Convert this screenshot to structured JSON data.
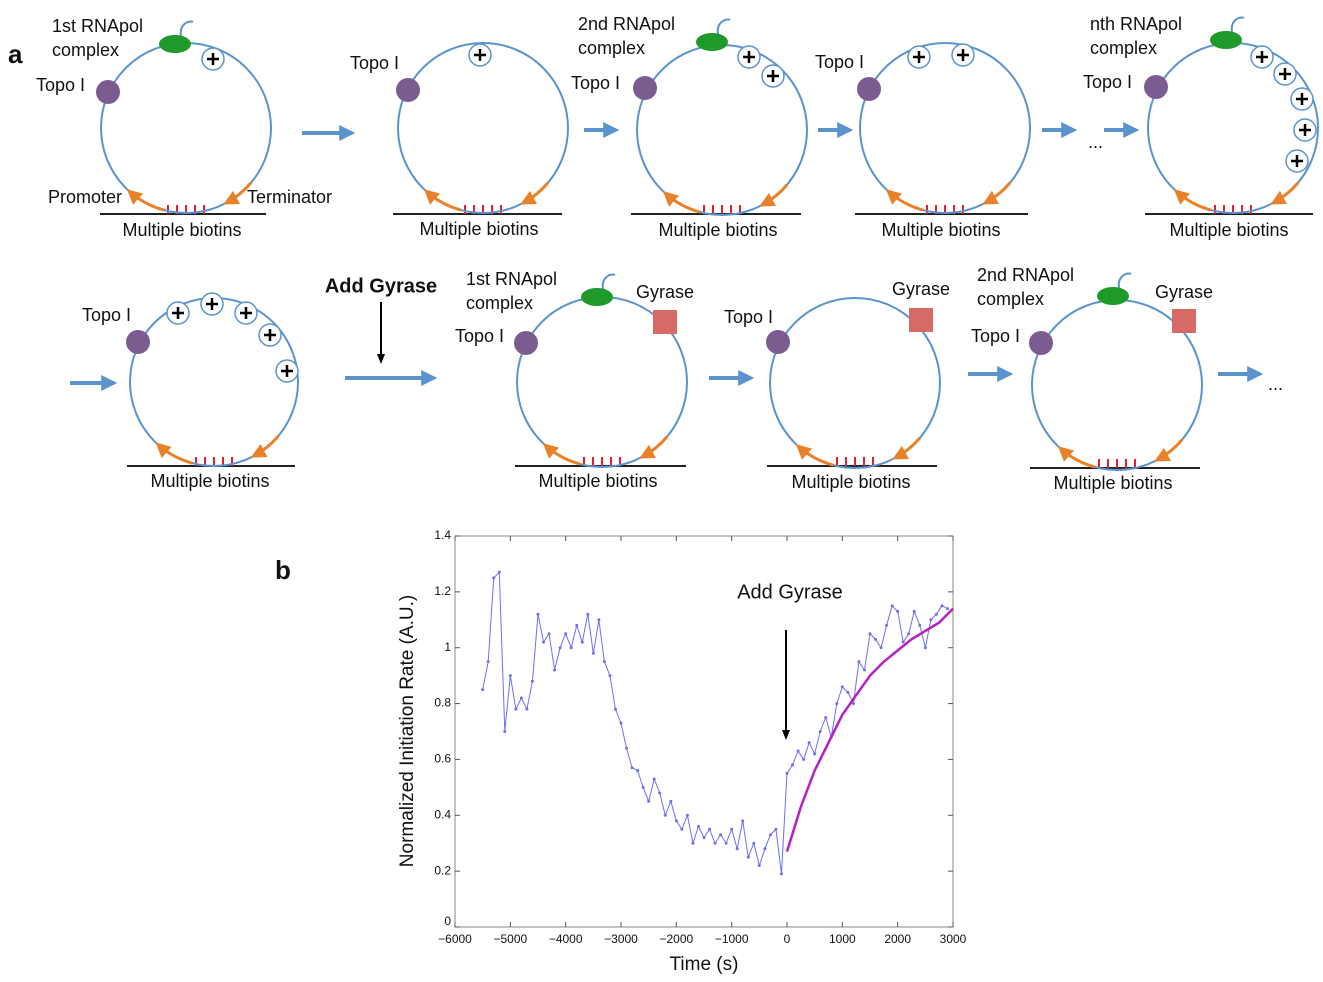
{
  "panel_a": {
    "label": "a",
    "add_gyrase": "Add Gyrase",
    "ellipses": [
      "...",
      "..."
    ],
    "diagrams": [
      {
        "rnapol": [
          "1st RNApol",
          "complex"
        ],
        "topo": "Topo I",
        "promoter": "Promoter",
        "terminator": "Terminator",
        "biotins": "Multiple biotins"
      },
      {
        "topo": "Topo I",
        "biotins": "Multiple biotins"
      },
      {
        "rnapol": [
          "2nd RNApol",
          "complex"
        ],
        "topo": "Topo I",
        "biotins": "Multiple biotins"
      },
      {
        "topo": "Topo I",
        "biotins": "Multiple biotins"
      },
      {
        "rnapol": [
          "nth RNApol",
          "complex"
        ],
        "topo": "Topo I",
        "biotins": "Multiple biotins"
      },
      {
        "topo": "Topo I",
        "biotins": "Multiple biotins"
      },
      {
        "rnapol": [
          "1st RNApol",
          "complex"
        ],
        "topo": "Topo I",
        "gyrase": "Gyrase",
        "biotins": "Multiple biotins"
      },
      {
        "topo": "Topo I",
        "gyrase": "Gyrase",
        "biotins": "Multiple biotins"
      },
      {
        "rnapol": [
          "2nd RNApol",
          "complex"
        ],
        "topo": "Topo I",
        "gyrase": "Gyrase",
        "biotins": "Multiple biotins"
      }
    ]
  },
  "chart_data": {
    "type": "line",
    "label": "b",
    "annotation": "Add Gyrase",
    "xlabel": "Time (s)",
    "ylabel": "Normalized Initiation Rate (A.U.)",
    "xlim": [
      -6000,
      3000
    ],
    "ylim": [
      0,
      1.4
    ],
    "xticks": [
      {
        "value": -6000,
        "label": "−6000"
      },
      {
        "value": -5000,
        "label": "−5000"
      },
      {
        "value": -4000,
        "label": "−4000"
      },
      {
        "value": -3000,
        "label": "−3000"
      },
      {
        "value": -2000,
        "label": "−2000"
      },
      {
        "value": -1000,
        "label": "−1000"
      },
      0,
      1000,
      2000,
      3000
    ],
    "yticks": [
      0,
      0.2,
      0.4,
      0.6,
      0.8,
      1,
      1.2,
      1.4
    ],
    "series": [
      {
        "color": "#6f6ff2",
        "markers": true,
        "x": [
          -5500,
          -5400,
          -5300,
          -5200,
          -5100,
          -5000,
          -4900,
          -4800,
          -4700,
          -4600,
          -4500,
          -4400,
          -4300,
          -4200,
          -4100,
          -4000,
          -3900,
          -3800,
          -3700,
          -3600,
          -3500,
          -3400,
          -3300,
          -3200,
          -3100,
          -3000,
          -2900,
          -2800,
          -2700,
          -2600,
          -2500,
          -2400,
          -2300,
          -2200,
          -2100,
          -2000,
          -1900,
          -1800,
          -1700,
          -1600,
          -1500,
          -1400,
          -1300,
          -1200,
          -1100,
          -1000,
          -900,
          -800,
          -700,
          -600,
          -500,
          -400,
          -300,
          -200,
          -100,
          0,
          100,
          200,
          300,
          400,
          500,
          600,
          700,
          800,
          900,
          1000,
          1100,
          1200,
          1300,
          1400,
          1500,
          1600,
          1700,
          1800,
          1900,
          2000,
          2100,
          2200,
          2300,
          2400,
          2500,
          2600,
          2700,
          2800,
          2900
        ],
        "values": [
          0.85,
          0.95,
          1.25,
          1.27,
          0.7,
          0.9,
          0.78,
          0.82,
          0.78,
          0.88,
          1.12,
          1.02,
          1.05,
          0.92,
          1.0,
          1.05,
          1.0,
          1.08,
          1.02,
          1.12,
          0.98,
          1.1,
          0.95,
          0.9,
          0.78,
          0.73,
          0.64,
          0.57,
          0.56,
          0.5,
          0.45,
          0.53,
          0.48,
          0.4,
          0.45,
          0.38,
          0.35,
          0.4,
          0.3,
          0.36,
          0.32,
          0.35,
          0.3,
          0.33,
          0.3,
          0.35,
          0.28,
          0.38,
          0.25,
          0.3,
          0.22,
          0.28,
          0.33,
          0.35,
          0.19,
          0.55,
          0.58,
          0.63,
          0.6,
          0.66,
          0.62,
          0.7,
          0.75,
          0.68,
          0.8,
          0.86,
          0.84,
          0.8,
          0.95,
          0.92,
          1.05,
          1.03,
          1.0,
          1.08,
          1.15,
          1.13,
          1.02,
          1.05,
          1.13,
          1.08,
          1.0,
          1.1,
          1.12,
          1.15,
          1.14
        ]
      },
      {
        "color": "#b51fc4",
        "markers": false,
        "x": [
          0,
          250,
          500,
          750,
          1000,
          1250,
          1500,
          1750,
          2000,
          2250,
          2500,
          2750,
          3000
        ],
        "values": [
          0.27,
          0.43,
          0.56,
          0.66,
          0.76,
          0.83,
          0.9,
          0.95,
          0.99,
          1.03,
          1.06,
          1.09,
          1.14
        ]
      }
    ]
  }
}
